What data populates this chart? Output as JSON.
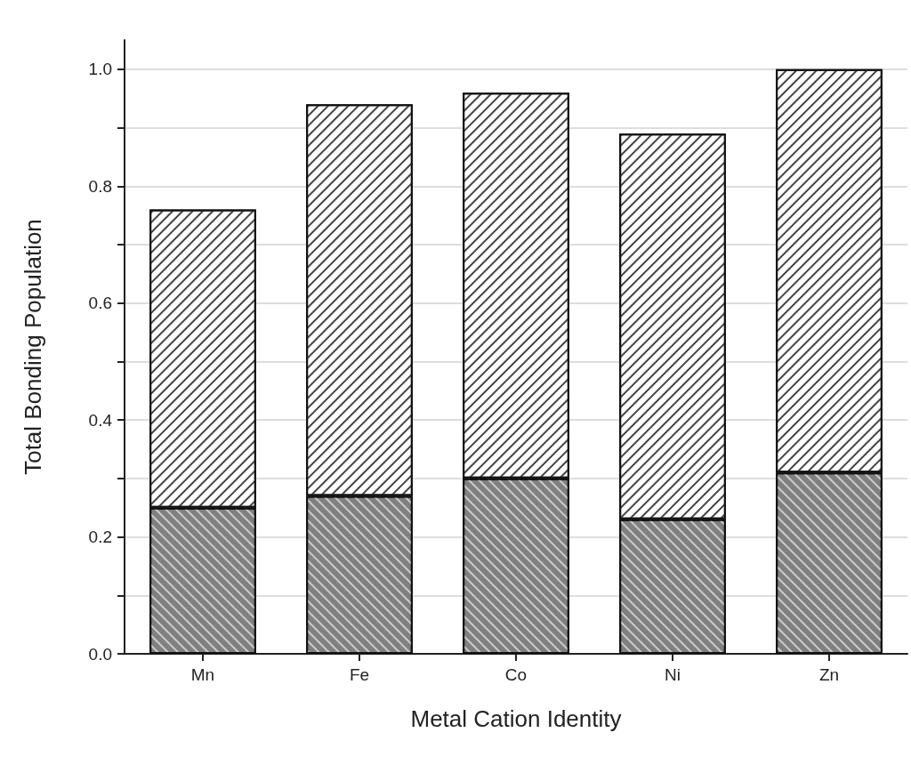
{
  "chart_data": {
    "type": "bar",
    "stacked": true,
    "xlabel": "Metal Cation Identity",
    "ylabel": "Total Bonding Population",
    "categories": [
      "Mn",
      "Fe",
      "Co",
      "Ni",
      "Zn"
    ],
    "series": [
      {
        "color": "#808080",
        "values": [
          0.25,
          0.27,
          0.3,
          0.23,
          0.31
        ]
      },
      {
        "color": "#ffffff",
        "values": [
          0.51,
          0.67,
          0.66,
          0.66,
          0.69
        ]
      }
    ],
    "ylim": [
      0,
      1.05
    ],
    "yticks": [
      {
        "value": 0,
        "label": "0.0"
      },
      {
        "value": 0.1,
        "label": null
      },
      {
        "value": 0.2,
        "label": "0.2"
      },
      {
        "value": 0.3,
        "label": null
      },
      {
        "value": 0.4,
        "label": "0.4"
      },
      {
        "value": 0.5,
        "label": null
      },
      {
        "value": 0.6,
        "label": "0.6"
      },
      {
        "value": 0.7,
        "label": null
      },
      {
        "value": 0.8,
        "label": "0.8"
      },
      {
        "value": 0.9,
        "label": null
      },
      {
        "value": 1,
        "label": "1.0"
      }
    ],
    "grid": "y"
  }
}
